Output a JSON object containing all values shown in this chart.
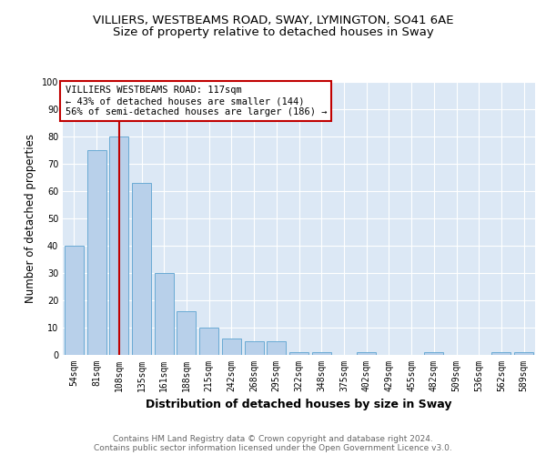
{
  "title1": "VILLIERS, WESTBEAMS ROAD, SWAY, LYMINGTON, SO41 6AE",
  "title2": "Size of property relative to detached houses in Sway",
  "xlabel": "Distribution of detached houses by size in Sway",
  "ylabel": "Number of detached properties",
  "categories": [
    "54sqm",
    "81sqm",
    "108sqm",
    "135sqm",
    "161sqm",
    "188sqm",
    "215sqm",
    "242sqm",
    "268sqm",
    "295sqm",
    "322sqm",
    "348sqm",
    "375sqm",
    "402sqm",
    "429sqm",
    "455sqm",
    "482sqm",
    "509sqm",
    "536sqm",
    "562sqm",
    "589sqm"
  ],
  "values": [
    40,
    75,
    80,
    63,
    30,
    16,
    10,
    6,
    5,
    5,
    1,
    1,
    0,
    1,
    0,
    0,
    1,
    0,
    0,
    1,
    1
  ],
  "bar_color": "#b8d0ea",
  "bar_edge_color": "#6aaad4",
  "vline_x": 2,
  "vline_color": "#c00000",
  "annotation_text": "VILLIERS WESTBEAMS ROAD: 117sqm\n← 43% of detached houses are smaller (144)\n56% of semi-detached houses are larger (186) →",
  "annotation_box_color": "white",
  "annotation_box_edge_color": "#c00000",
  "ylim": [
    0,
    100
  ],
  "yticks": [
    0,
    10,
    20,
    30,
    40,
    50,
    60,
    70,
    80,
    90,
    100
  ],
  "background_color": "#dce8f5",
  "footer_text": "Contains HM Land Registry data © Crown copyright and database right 2024.\nContains public sector information licensed under the Open Government Licence v3.0.",
  "title_fontsize": 9.5,
  "subtitle_fontsize": 9.5,
  "tick_fontsize": 7,
  "ylabel_fontsize": 8.5,
  "xlabel_fontsize": 9,
  "annotation_fontsize": 7.5,
  "footer_fontsize": 6.5
}
